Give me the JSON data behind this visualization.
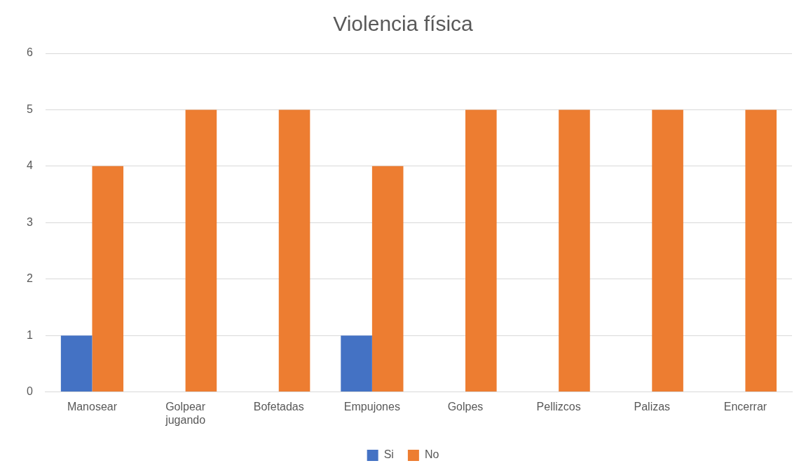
{
  "chart_data": {
    "type": "bar",
    "title": "Violencia física",
    "categories": [
      "Manosear",
      "Golpear jugando",
      "Bofetadas",
      "Empujones",
      "Golpes",
      "Pellizcos",
      "Palizas",
      "Encerrar"
    ],
    "series": [
      {
        "name": "Si",
        "color": "#4472c4",
        "values": [
          1,
          0,
          0,
          1,
          0,
          0,
          0,
          0
        ]
      },
      {
        "name": "No",
        "color": "#ed7d31",
        "values": [
          4,
          5,
          5,
          4,
          5,
          5,
          5,
          5
        ]
      }
    ],
    "ylim": [
      0,
      6
    ],
    "yticks": [
      0,
      1,
      2,
      3,
      4,
      5,
      6
    ],
    "grid": "y",
    "legend": "bottom"
  }
}
